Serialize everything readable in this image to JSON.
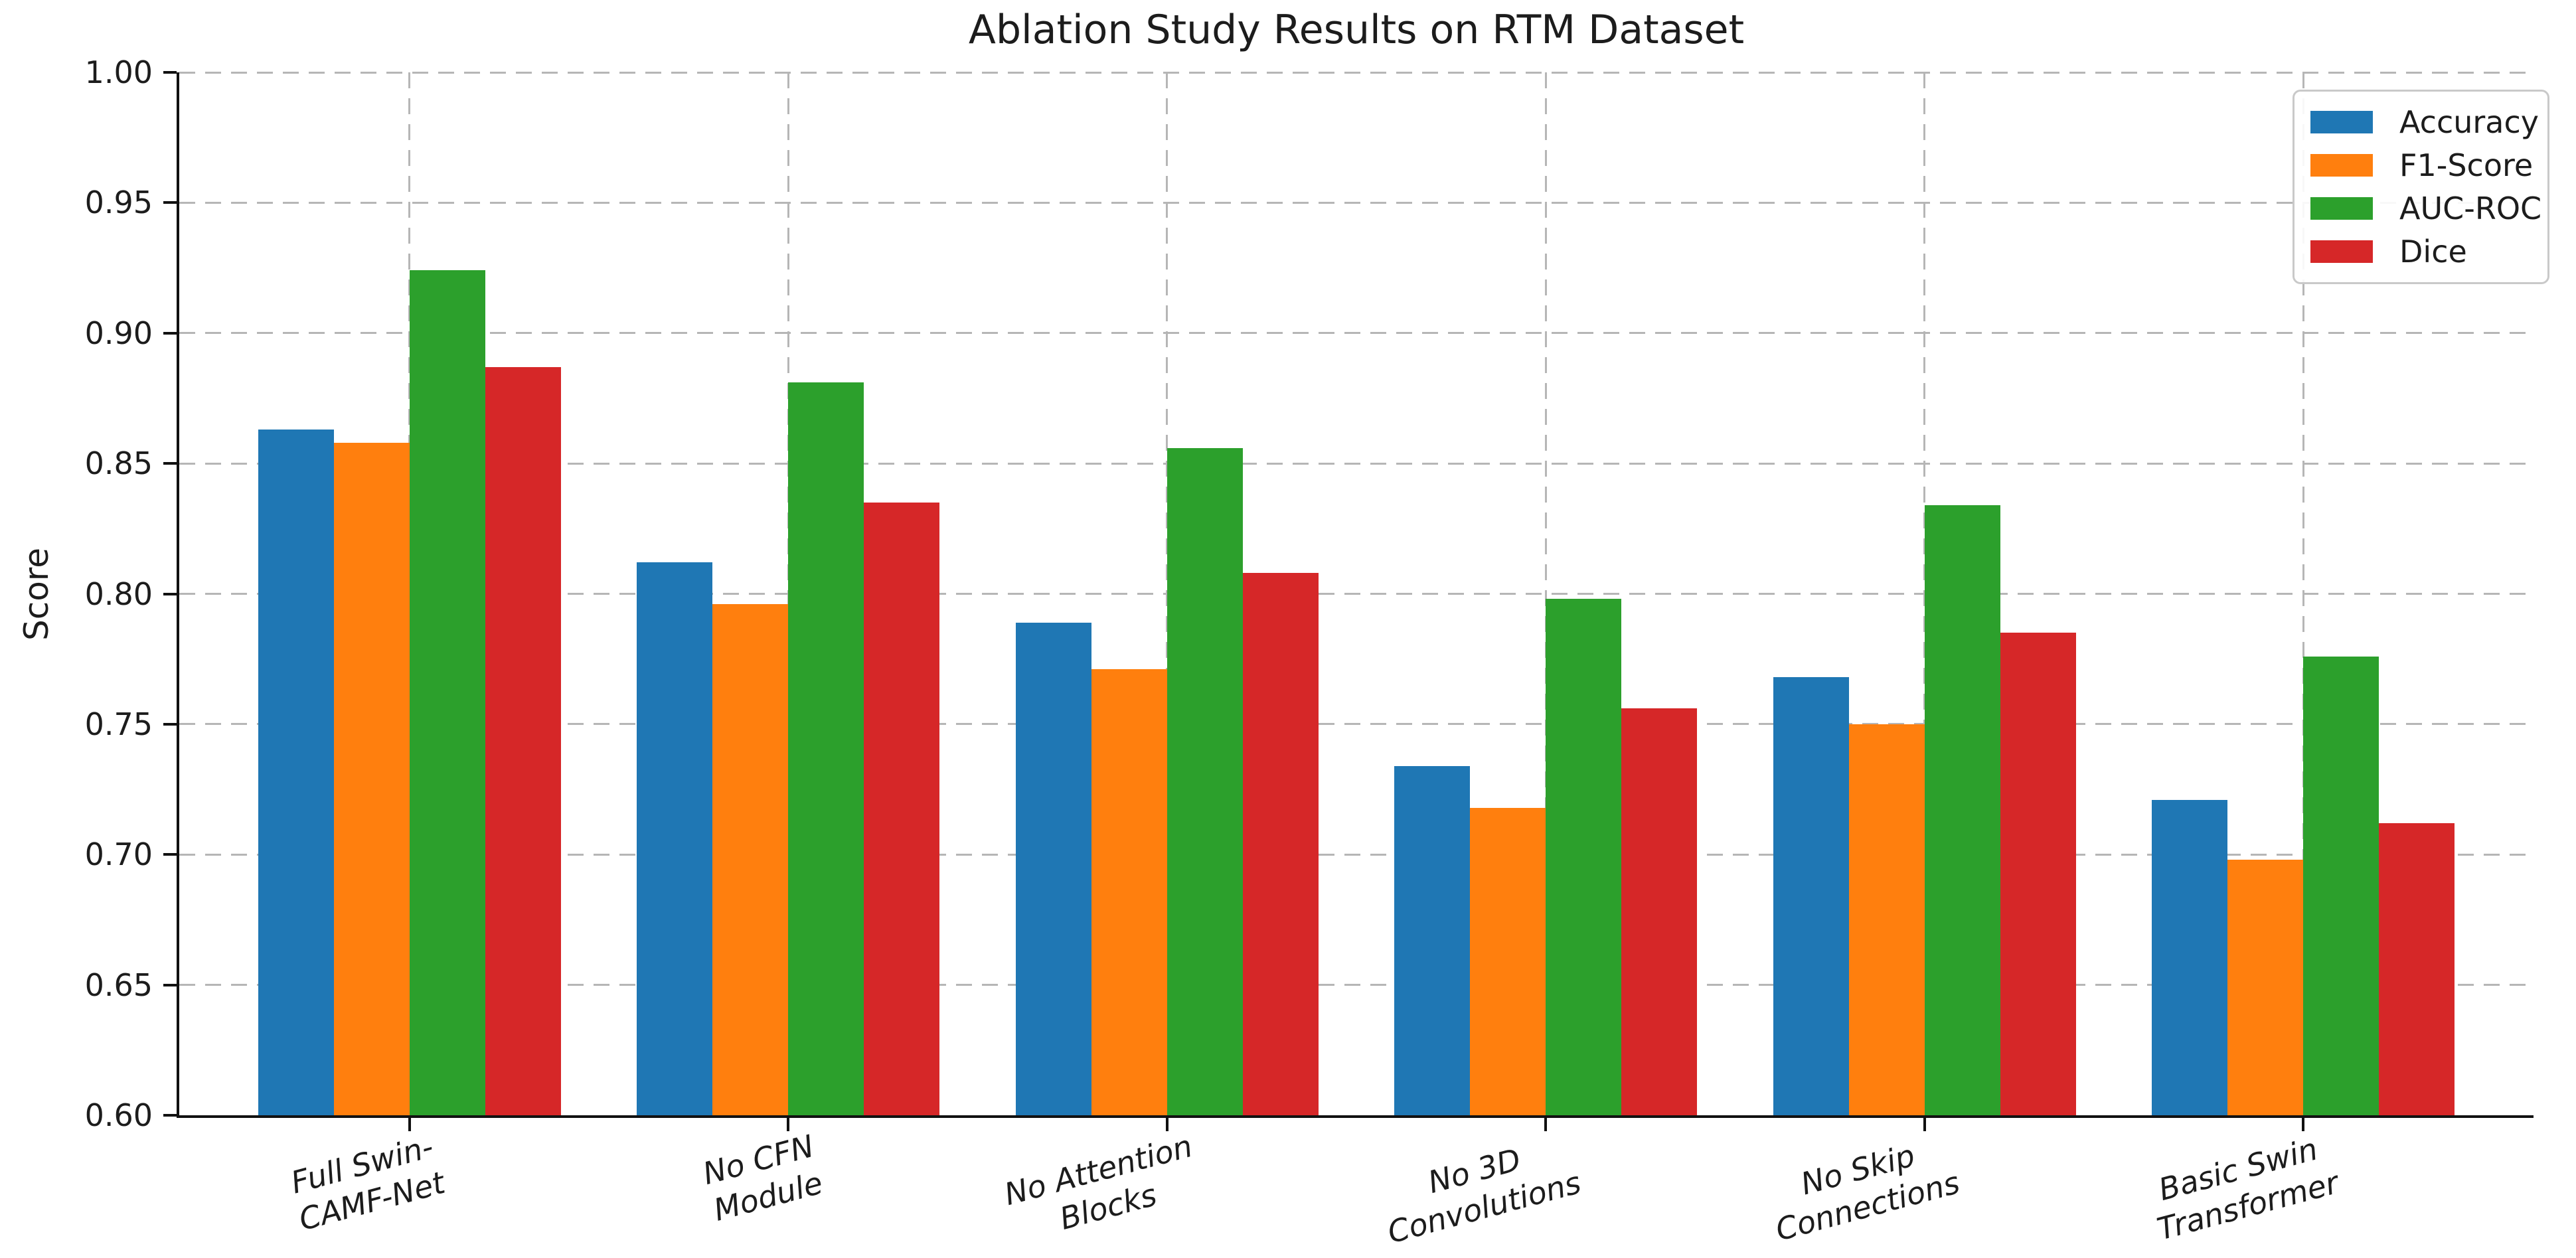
{
  "chart_data": {
    "type": "bar",
    "title": "Ablation Study Results on RTM Dataset",
    "xlabel": "",
    "ylabel": "Score",
    "ylim": [
      0.6,
      1.0
    ],
    "ytick_step": 0.05,
    "ytick_labels": [
      "0.60",
      "0.65",
      "0.70",
      "0.75",
      "0.80",
      "0.85",
      "0.90",
      "0.95",
      "1.00"
    ],
    "grid": true,
    "grid_style": "dashed",
    "legend_position": "upper right",
    "categories": [
      "Full Swin-CAMF-Net",
      "No CFN Module",
      "No Attention Blocks",
      "No 3D Convolutions",
      "No Skip Connections",
      "Basic Swin Transformer"
    ],
    "category_label_lines": [
      [
        "Full Swin-",
        "CAMF-Net"
      ],
      [
        "No CFN",
        "Module"
      ],
      [
        "No Attention",
        "Blocks"
      ],
      [
        "No 3D",
        "Convolutions"
      ],
      [
        "No Skip",
        "Connections"
      ],
      [
        "Basic Swin",
        "Transformer"
      ]
    ],
    "series": [
      {
        "name": "Accuracy",
        "color": "#1f77b4",
        "values": [
          0.863,
          0.812,
          0.789,
          0.734,
          0.768,
          0.721
        ]
      },
      {
        "name": "F1-Score",
        "color": "#ff7f0e",
        "values": [
          0.858,
          0.796,
          0.771,
          0.718,
          0.75,
          0.698
        ]
      },
      {
        "name": "AUC-ROC",
        "color": "#2ca02c",
        "values": [
          0.924,
          0.881,
          0.856,
          0.798,
          0.834,
          0.776
        ]
      },
      {
        "name": "Dice",
        "color": "#d62728",
        "values": [
          0.887,
          0.835,
          0.808,
          0.756,
          0.785,
          0.712
        ]
      }
    ],
    "colors": {
      "background": "#ffffff",
      "grid": "#b6b6b6",
      "axis": "#111111",
      "text": "#1c1c1c",
      "legend_border": "#c9c9c9"
    }
  }
}
